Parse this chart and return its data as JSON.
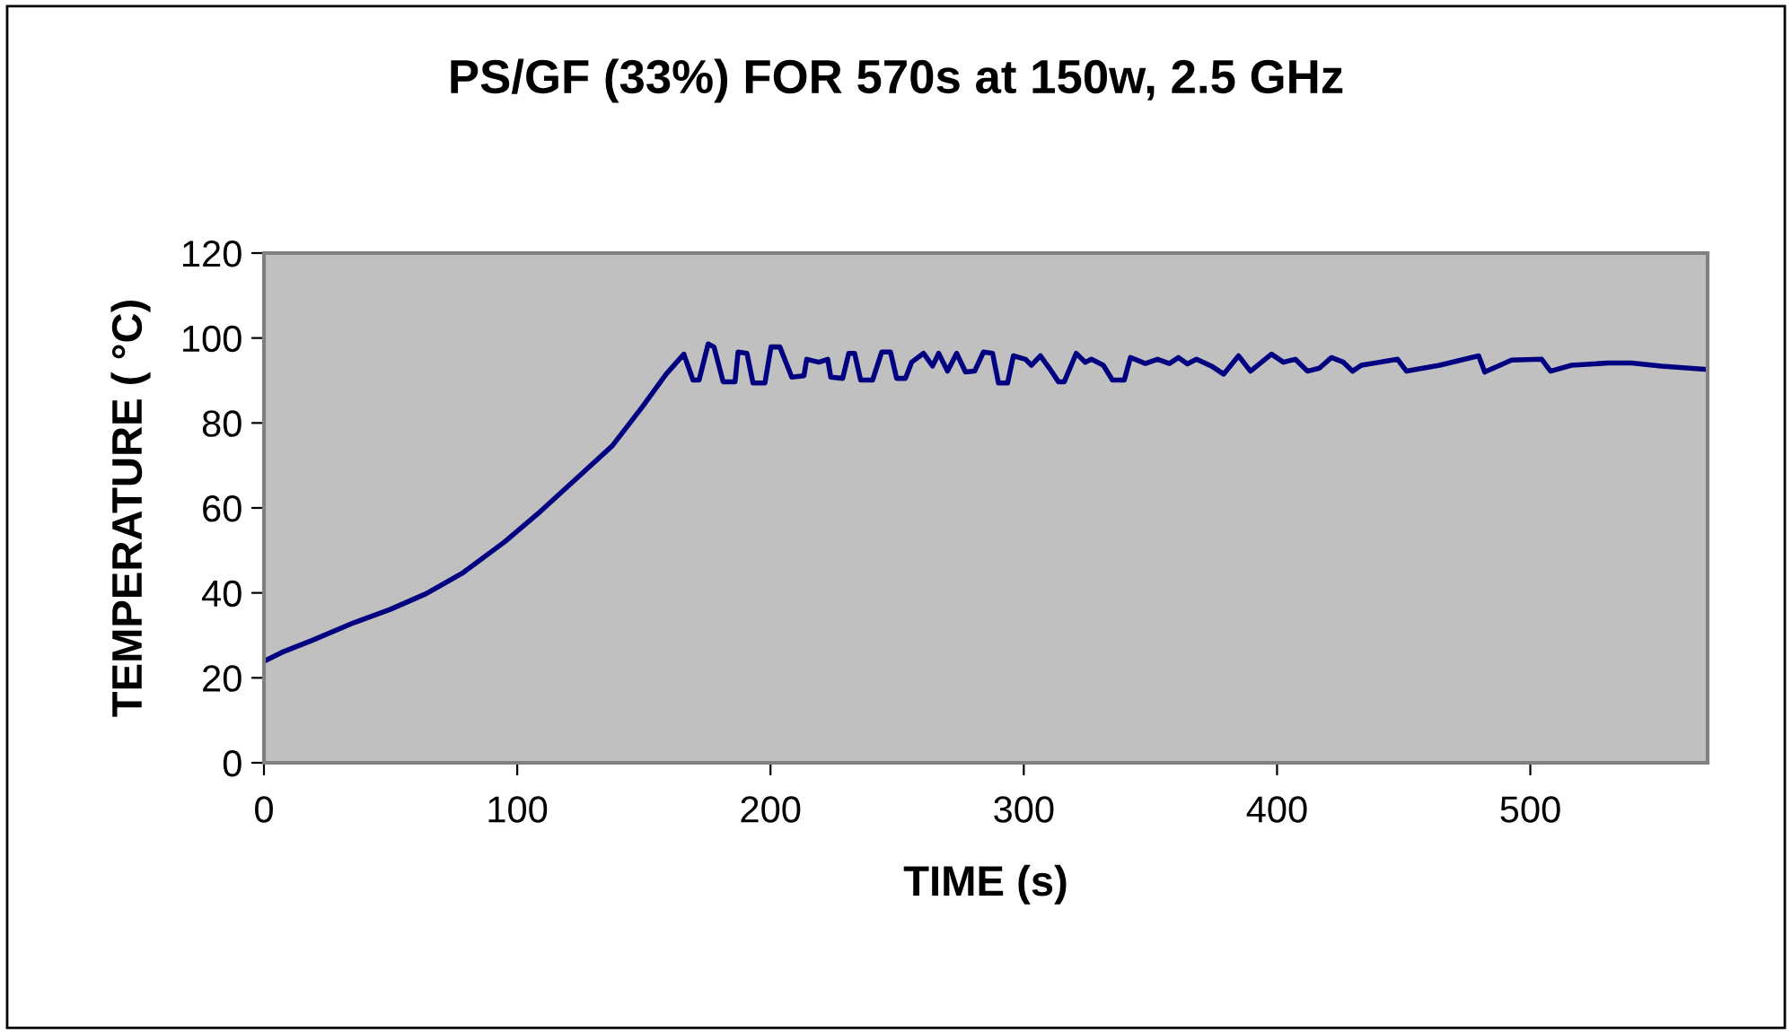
{
  "chart_data": {
    "type": "line",
    "title": "PS/GF (33%) FOR 570s at 150w, 2.5 GHz",
    "xlabel": "TIME (s)",
    "ylabel": "TEMPERATURE ( °C)",
    "xlim": [
      0,
      570
    ],
    "xticks": [
      0,
      100,
      200,
      300,
      400,
      500
    ],
    "ylim": [
      0,
      120
    ],
    "yticks": [
      0,
      20,
      40,
      60,
      80,
      100,
      120
    ],
    "grid": false,
    "marker": "none",
    "line_style": "solid",
    "series": [
      {
        "color": "#000080",
        "x": [
          0,
          7.1,
          19,
          35.6,
          49.8,
          64,
          78.2,
          95,
          109,
          123.2,
          137.5,
          149.4,
          158.8,
          165.8,
          169.4,
          171.8,
          175.4,
          177.7,
          181.3,
          186,
          187.2,
          190.7,
          193.1,
          197.8,
          200.2,
          203.7,
          208.4,
          213.2,
          214.3,
          219.1,
          222.6,
          223.8,
          228.5,
          230.9,
          233.2,
          235.6,
          240.3,
          243.9,
          247.4,
          249.8,
          253.3,
          255.7,
          260.4,
          264,
          266.4,
          269.9,
          273.5,
          277,
          280.6,
          284.1,
          287.7,
          290,
          293.6,
          295.9,
          300.7,
          303,
          306.6,
          310.1,
          313.7,
          316,
          320.7,
          324.3,
          326.7,
          331.4,
          335,
          339.7,
          342.1,
          348,
          352.8,
          357.5,
          361.1,
          364.6,
          368.2,
          374.1,
          378.9,
          384.8,
          389.5,
          397.8,
          402.5,
          407.2,
          412,
          416.7,
          421.5,
          426.2,
          429.8,
          433.3,
          447.6,
          451.1,
          464.2,
          479.6,
          482,
          492.6,
          504.5,
          508,
          516.3,
          530.6,
          540,
          551.8,
          570
        ],
        "values": [
          23.9,
          26,
          28.8,
          33,
          36.1,
          39.8,
          44.6,
          52,
          59.1,
          66.8,
          74.6,
          83.8,
          91.5,
          96.2,
          90.1,
          90.1,
          98.6,
          97.9,
          89.7,
          89.7,
          96.7,
          96.4,
          89.4,
          89.4,
          97.9,
          97.9,
          90.8,
          91.1,
          95,
          94.3,
          95,
          90.8,
          90.5,
          96.4,
          96.4,
          90.1,
          90.1,
          96.7,
          96.7,
          90.5,
          90.5,
          94.3,
          96.4,
          93.4,
          96.4,
          92.2,
          96.4,
          92,
          92.2,
          96.7,
          96.4,
          89.4,
          89.4,
          95.8,
          95,
          93.6,
          95.8,
          92.9,
          89.7,
          89.7,
          96.4,
          94.3,
          95,
          93.6,
          90.1,
          90.1,
          95.4,
          94,
          95,
          94,
          95.4,
          93.9,
          95,
          93.4,
          91.5,
          95.8,
          92.2,
          96.2,
          94.3,
          95,
          92.2,
          92.9,
          95.4,
          94.3,
          92.2,
          93.6,
          95,
          92.2,
          93.6,
          95.8,
          92,
          94.8,
          95,
          92.2,
          93.6,
          94.1,
          94.1,
          93.4,
          92.6
        ]
      }
    ]
  }
}
